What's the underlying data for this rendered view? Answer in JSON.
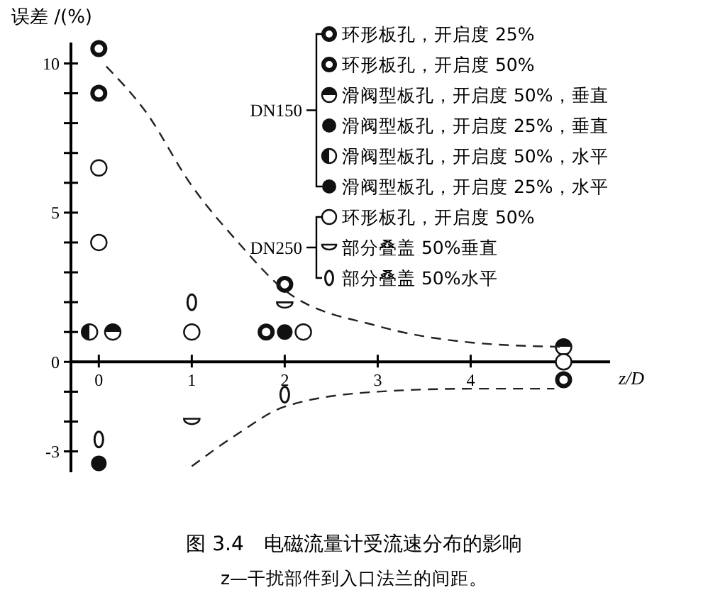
{
  "chart_data": {
    "type": "scatter",
    "title": "图 3.4　电磁流量计受流速分布的影响",
    "subtitle": "z—干扰部件到入口法兰的间距。",
    "xlabel": "z/D",
    "ylabel": "误差 /(%)",
    "xlim": [
      -0.3,
      5.5
    ],
    "ylim": [
      -3.7,
      10.7
    ],
    "xticks": [
      0,
      1,
      2,
      3,
      4
    ],
    "yticks": [
      -3,
      {
        "value": -2,
        "label": null
      },
      {
        "value": -1,
        "label": null
      },
      0,
      {
        "value": 1,
        "label": null
      },
      {
        "value": 2,
        "label": null
      },
      {
        "value": 3,
        "label": null
      },
      {
        "value": 4,
        "label": null
      },
      5,
      {
        "value": 6,
        "label": null
      },
      {
        "value": 7,
        "label": null
      },
      {
        "value": 8,
        "label": null
      },
      {
        "value": 9,
        "label": null
      },
      10
    ],
    "grid": false,
    "legend": "top right",
    "marker": "circle",
    "annotations": [
      "DN150",
      "DN250"
    ],
    "series": [
      {
        "name": "环形板孔，开启度 25%",
        "color": "#111111",
        "x": [
          0,
          2,
          5
        ],
        "values": [
          10.5,
          2.6,
          -0.6
        ]
      },
      {
        "name": "环形板孔，开启度 50%",
        "color": "#111111",
        "x": [
          0,
          1.8
        ],
        "values": [
          9.0,
          1.0
        ]
      },
      {
        "name": "滑阀型板孔，开启度 50%，垂直",
        "color": "#111111",
        "x": [
          0.15,
          5
        ],
        "values": [
          1.0,
          0.5
        ]
      },
      {
        "name": "滑阀型板孔，开启度 25%，垂直",
        "color": "#111111",
        "x": [
          2
        ],
        "values": [
          1.0
        ]
      },
      {
        "name": "滑阀型板孔，开启度 50%，水平",
        "color": "#111111",
        "x": [
          -0.1
        ],
        "values": [
          1.0
        ]
      },
      {
        "name": "滑阀型板孔，开启度 25%，水平",
        "color": "#111111",
        "x": [
          0
        ],
        "values": [
          -3.4
        ]
      },
      {
        "name": "环形板孔，开启度 50%",
        "color": "#111111",
        "x": [
          0,
          0,
          1,
          2.2,
          5
        ],
        "values": [
          6.5,
          4.0,
          1.0,
          1.0,
          0
        ]
      },
      {
        "name": "部分叠盖 50%垂直",
        "color": "#111111",
        "x": [
          2,
          1
        ],
        "values": [
          1.9,
          -2.0
        ]
      },
      {
        "name": "部分叠盖 50%水平",
        "color": "#111111",
        "x": [
          1,
          0,
          2
        ],
        "values": [
          2.0,
          -2.6,
          -1.1
        ]
      },
      {
        "type": "line",
        "color": "#222222",
        "line_style": "dashed",
        "marker": "none",
        "x": [
          0.08,
          0.5,
          1,
          1.5,
          2,
          3,
          4,
          5
        ],
        "values": [
          9.9,
          8.4,
          5.9,
          4.0,
          2.4,
          1.2,
          0.65,
          0.5
        ]
      },
      {
        "type": "line",
        "color": "#222222",
        "line_style": "dashed",
        "marker": "none",
        "x": [
          1,
          1.5,
          2,
          3,
          4,
          4.9
        ],
        "values": [
          -3.5,
          -2.4,
          -1.5,
          -1.0,
          -0.9,
          -0.9
        ]
      }
    ]
  }
}
